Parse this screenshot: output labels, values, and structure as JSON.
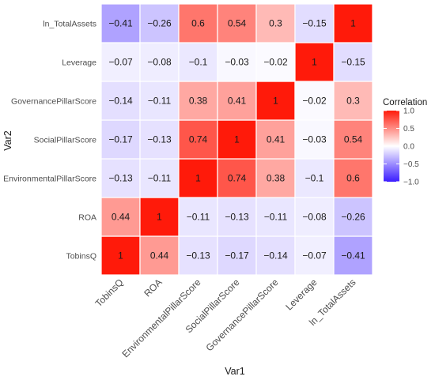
{
  "chart_data": {
    "type": "heatmap",
    "xlabel": "Var1",
    "ylabel": "Var2",
    "x_categories": [
      "TobinsQ",
      "ROA",
      "EnvironmentalPillarScore",
      "SocialPillarScore",
      "GovernancePillarScore",
      "Leverage",
      "ln_TotalAssets"
    ],
    "y_categories": [
      "TobinsQ",
      "ROA",
      "EnvironmentalPillarScore",
      "SocialPillarScore",
      "GovernancePillarScore",
      "Leverage",
      "ln_TotalAssets"
    ],
    "values": [
      [
        1,
        0.44,
        -0.13,
        -0.17,
        -0.14,
        -0.07,
        -0.41
      ],
      [
        0.44,
        1,
        -0.11,
        -0.13,
        -0.11,
        -0.08,
        -0.26
      ],
      [
        -0.13,
        -0.11,
        1,
        0.74,
        0.38,
        -0.1,
        0.6
      ],
      [
        -0.17,
        -0.13,
        0.74,
        1,
        0.41,
        -0.03,
        0.54
      ],
      [
        -0.14,
        -0.11,
        0.38,
        0.41,
        1,
        -0.02,
        0.3
      ],
      [
        -0.07,
        -0.08,
        -0.1,
        -0.03,
        -0.02,
        1,
        -0.15
      ],
      [
        -0.41,
        -0.26,
        0.6,
        0.54,
        0.3,
        -0.15,
        1
      ]
    ],
    "cell_labels": [
      [
        "1",
        "0.44",
        "−0.13",
        "−0.17",
        "−0.14",
        "−0.07",
        "−0.41"
      ],
      [
        "0.44",
        "1",
        "−0.11",
        "−0.13",
        "−0.11",
        "−0.08",
        "−0.26"
      ],
      [
        "−0.13",
        "−0.11",
        "1",
        "0.74",
        "0.38",
        "−0.1",
        "0.6"
      ],
      [
        "−0.17",
        "−0.13",
        "0.74",
        "1",
        "0.41",
        "−0.03",
        "0.54"
      ],
      [
        "−0.14",
        "−0.11",
        "0.38",
        "0.41",
        "1",
        "−0.02",
        "0.3"
      ],
      [
        "−0.07",
        "−0.08",
        "−0.1",
        "−0.03",
        "−0.02",
        "1",
        "−0.15"
      ],
      [
        "−0.41",
        "−0.26",
        "0.6",
        "0.54",
        "0.3",
        "−0.15",
        "1"
      ]
    ],
    "legend": {
      "title": "Correlation",
      "placement": "right",
      "range": [
        -1,
        1
      ],
      "ticks": [
        1.0,
        0.5,
        0.0,
        -0.5,
        -1.0
      ],
      "tick_labels": [
        "1.0",
        "0.5",
        "0.0",
        "−0.5",
        "−1.0"
      ]
    },
    "colors": {
      "low": "#3b1cff",
      "mid": "#ffffff",
      "high": "#ff1a0a",
      "grid": "#ffffff"
    }
  }
}
